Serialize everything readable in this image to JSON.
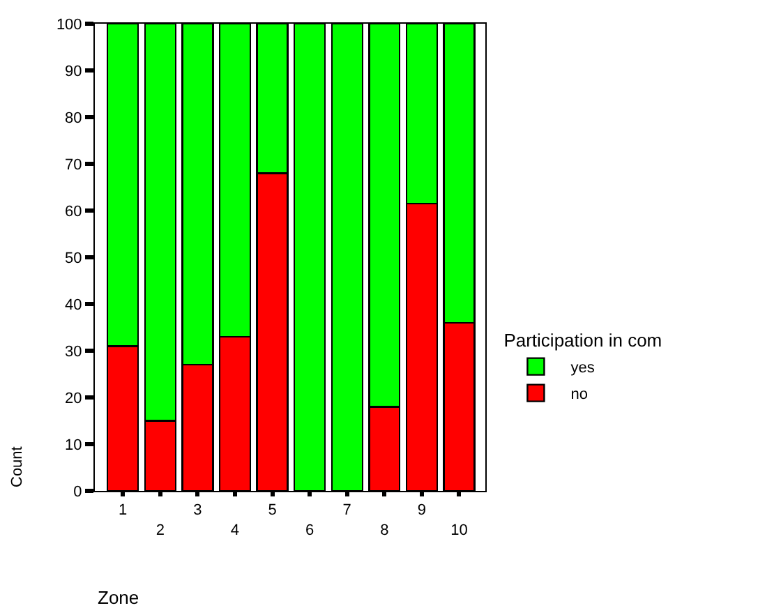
{
  "chart_data": {
    "type": "bar",
    "stacked": true,
    "xlabel": "Zone",
    "ylabel": "Count",
    "legend_title": "Participation in com",
    "categories": [
      "1",
      "2",
      "3",
      "4",
      "5",
      "6",
      "7",
      "8",
      "9",
      "10"
    ],
    "series": [
      {
        "name": "no",
        "color": "#ff0000",
        "values": [
          31,
          15,
          27,
          33,
          68,
          0,
          0,
          18,
          61.5,
          36
        ]
      },
      {
        "name": "yes",
        "color": "#00ff00",
        "values": [
          69,
          85,
          73,
          67,
          32,
          100,
          100,
          82,
          38.5,
          64
        ]
      }
    ],
    "ylim": [
      0,
      100
    ],
    "yticks": [
      0,
      10,
      20,
      30,
      40,
      50,
      60,
      70,
      80,
      90,
      100
    ],
    "legend": "right"
  }
}
